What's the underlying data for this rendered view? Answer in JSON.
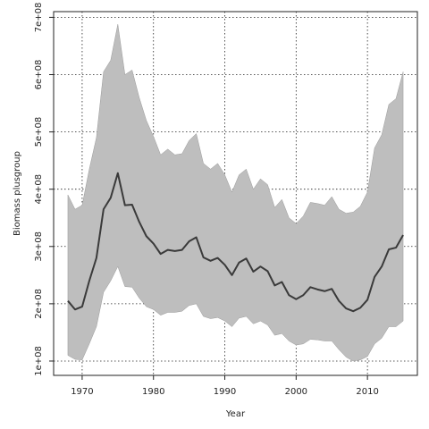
{
  "chart_data": {
    "type": "line",
    "title": "",
    "xlabel": "Year",
    "ylabel": "Biomass plusgroup",
    "xlim": [
      1966,
      2017
    ],
    "ylim": [
      75000000,
      710000000
    ],
    "grid": true,
    "legend": "none",
    "x_ticks": [
      1970,
      1980,
      1990,
      2000,
      2010
    ],
    "x_tick_labels": [
      "1970",
      "1980",
      "1990",
      "2000",
      "2010"
    ],
    "y_ticks": [
      100000000,
      200000000,
      300000000,
      400000000,
      500000000,
      600000000,
      700000000
    ],
    "y_tick_labels": [
      "1e+08",
      "2e+08",
      "3e+08",
      "4e+08",
      "5e+08",
      "6e+08",
      "7e+08"
    ],
    "colors": {
      "band": "#bebebe",
      "line": "#3a3a3a",
      "grid": "#222222"
    },
    "x": [
      1968,
      1969,
      1970,
      1971,
      1972,
      1973,
      1974,
      1975,
      1976,
      1977,
      1978,
      1979,
      1980,
      1981,
      1982,
      1983,
      1984,
      1985,
      1986,
      1987,
      1988,
      1989,
      1990,
      1991,
      1992,
      1993,
      1994,
      1995,
      1996,
      1997,
      1998,
      1999,
      2000,
      2001,
      2002,
      2003,
      2004,
      2005,
      2006,
      2007,
      2008,
      2009,
      2010,
      2011,
      2012,
      2013,
      2014,
      2015
    ],
    "series": [
      {
        "role": "estimate",
        "values": [
          205000000,
          190000000,
          195000000,
          240000000,
          280000000,
          365000000,
          385000000,
          428000000,
          372000000,
          373000000,
          343000000,
          318000000,
          305000000,
          287000000,
          294000000,
          292000000,
          294000000,
          309000000,
          316000000,
          281000000,
          275000000,
          280000000,
          268000000,
          250000000,
          272000000,
          279000000,
          256000000,
          265000000,
          257000000,
          232000000,
          238000000,
          215000000,
          208000000,
          215000000,
          229000000,
          225000000,
          222000000,
          226000000,
          205000000,
          192000000,
          187000000,
          193000000,
          207000000,
          247000000,
          265000000,
          295000000,
          298000000,
          320000000
        ]
      },
      {
        "role": "lower",
        "values": [
          110000000,
          103000000,
          102000000,
          130000000,
          160000000,
          220000000,
          240000000,
          265000000,
          230000000,
          229000000,
          210000000,
          195000000,
          190000000,
          180000000,
          185000000,
          185000000,
          187000000,
          197000000,
          200000000,
          178000000,
          174000000,
          176000000,
          170000000,
          160000000,
          175000000,
          178000000,
          165000000,
          170000000,
          163000000,
          145000000,
          148000000,
          135000000,
          128000000,
          130000000,
          138000000,
          137000000,
          135000000,
          135000000,
          120000000,
          107000000,
          100000000,
          102000000,
          108000000,
          130000000,
          140000000,
          160000000,
          160000000,
          170000000
        ]
      },
      {
        "role": "upper",
        "values": [
          390000000,
          365000000,
          372000000,
          435000000,
          490000000,
          605000000,
          625000000,
          688000000,
          600000000,
          608000000,
          560000000,
          520000000,
          492000000,
          460000000,
          470000000,
          460000000,
          462000000,
          485000000,
          497000000,
          445000000,
          435000000,
          445000000,
          425000000,
          395000000,
          425000000,
          435000000,
          400000000,
          418000000,
          408000000,
          368000000,
          382000000,
          350000000,
          340000000,
          353000000,
          377000000,
          375000000,
          372000000,
          387000000,
          365000000,
          358000000,
          360000000,
          370000000,
          395000000,
          472000000,
          495000000,
          548000000,
          558000000,
          605000000
        ]
      }
    ]
  }
}
